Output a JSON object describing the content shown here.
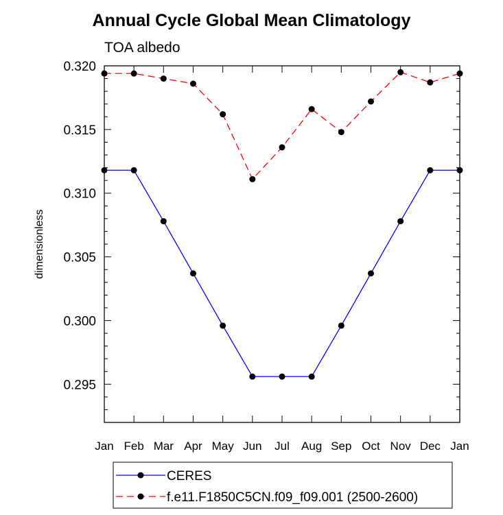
{
  "chart_data": {
    "type": "line",
    "title": "Annual Cycle Global Mean Climatology",
    "subtitle": "TOA albedo",
    "xlabel": "",
    "ylabel": "dimensionless",
    "categories": [
      "Jan",
      "Feb",
      "Mar",
      "Apr",
      "May",
      "Jun",
      "Jul",
      "Aug",
      "Sep",
      "Oct",
      "Nov",
      "Dec",
      "Jan"
    ],
    "ylim": [
      0.292,
      0.32
    ],
    "yticks": [
      "0.295",
      "0.300",
      "0.305",
      "0.310",
      "0.315",
      "0.320"
    ],
    "grid": false,
    "legend_position": "bottom",
    "series": [
      {
        "name": "CERES",
        "color": "#0000ff",
        "dash": "solid",
        "values": [
          0.3118,
          0.3118,
          0.3078,
          0.3037,
          0.2996,
          0.2956,
          0.2956,
          0.2956,
          0.2996,
          0.3037,
          0.3078,
          0.3118,
          0.3118
        ]
      },
      {
        "name": "f.e11.F1850C5CN.f09_f09.001 (2500-2600)",
        "color": "#ff0000",
        "dash": "dashed",
        "values": [
          0.3194,
          0.3194,
          0.319,
          0.3186,
          0.3162,
          0.3111,
          0.3136,
          0.3166,
          0.3148,
          0.3172,
          0.3195,
          0.3187,
          0.3194
        ]
      }
    ]
  }
}
